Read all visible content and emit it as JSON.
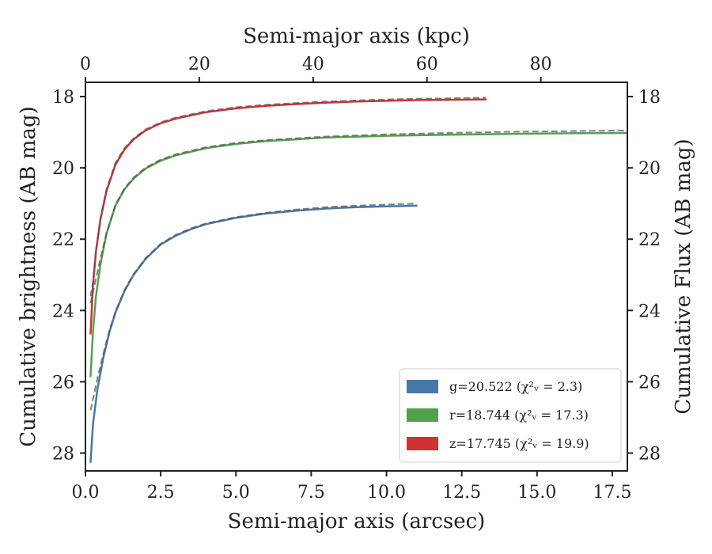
{
  "chart_data": {
    "type": "line",
    "xlabel": "Semi-major axis (arcsec)",
    "x2label": "Semi-major axis (kpc)",
    "ylabel": "Cumulative brightness (AB mag)",
    "y2label": "Cumulative Flux (AB mag)",
    "xlim": [
      0,
      18
    ],
    "x2lim": [
      0,
      95.2
    ],
    "ylim": [
      28.5,
      17.6
    ],
    "y_inverted": true,
    "x_ticks": [
      "0.0",
      "2.5",
      "5.0",
      "7.5",
      "10.0",
      "12.5",
      "15.0",
      "17.5"
    ],
    "x2_ticks": [
      "0",
      "20",
      "40",
      "60",
      "80"
    ],
    "y_ticks": [
      "18",
      "20",
      "22",
      "24",
      "26",
      "28"
    ],
    "y2_ticks": [
      "18",
      "20",
      "22",
      "24",
      "26",
      "28"
    ],
    "grid": false,
    "legend_position": "lower-right",
    "legend": [
      {
        "band": "g",
        "text": "g=20.522 (χ²ᵥ = 2.3)",
        "color": "#4878a8"
      },
      {
        "band": "r",
        "text": "r=18.744 (χ²ᵥ = 17.3)",
        "color": "#55a04f"
      },
      {
        "band": "z",
        "text": "z=17.745 (χ²ᵥ = 19.9)",
        "color": "#d03234"
      }
    ],
    "series": [
      {
        "band": "g",
        "color": "#4878a8",
        "x": [
          0.17,
          0.25,
          0.4,
          0.6,
          0.8,
          1.0,
          1.3,
          1.6,
          2.0,
          2.5,
          3.0,
          3.5,
          4.0,
          5.0,
          6.0,
          7.0,
          8.0,
          9.0,
          10.0,
          11.0
        ],
        "y": [
          28.25,
          27.2,
          26.2,
          25.3,
          24.6,
          24.05,
          23.45,
          23.0,
          22.55,
          22.15,
          21.9,
          21.72,
          21.58,
          21.4,
          21.28,
          21.2,
          21.14,
          21.1,
          21.08,
          21.06
        ],
        "model_y": [
          26.8,
          26.5,
          25.9,
          25.2,
          24.55,
          24.02,
          23.42,
          22.98,
          22.53,
          22.13,
          21.88,
          21.7,
          21.56,
          21.38,
          21.26,
          21.17,
          21.1,
          21.06,
          21.03,
          21.0
        ]
      },
      {
        "band": "r",
        "color": "#55a04f",
        "x": [
          0.17,
          0.25,
          0.35,
          0.5,
          0.7,
          1.0,
          1.3,
          1.6,
          2.0,
          2.5,
          3.0,
          4.0,
          5.0,
          6.0,
          8.0,
          10.0,
          12.0,
          14.0,
          16.0,
          17.95
        ],
        "y": [
          25.85,
          24.6,
          23.6,
          22.7,
          21.85,
          21.05,
          20.6,
          20.3,
          20.02,
          19.8,
          19.65,
          19.45,
          19.33,
          19.25,
          19.15,
          19.1,
          19.07,
          19.05,
          19.03,
          19.02
        ],
        "model_y": [
          23.8,
          23.5,
          23.1,
          22.55,
          21.82,
          21.02,
          20.57,
          20.27,
          19.99,
          19.77,
          19.62,
          19.42,
          19.3,
          19.22,
          19.12,
          19.06,
          19.02,
          18.99,
          18.97,
          18.95
        ]
      },
      {
        "band": "z",
        "color": "#d03234",
        "x": [
          0.17,
          0.25,
          0.35,
          0.5,
          0.7,
          1.0,
          1.3,
          1.6,
          2.0,
          2.5,
          3.0,
          4.0,
          5.0,
          6.0,
          7.0,
          8.0,
          9.0,
          10.0,
          11.0,
          12.0,
          13.3
        ],
        "y": [
          24.65,
          23.3,
          22.35,
          21.45,
          20.65,
          19.9,
          19.48,
          19.2,
          18.95,
          18.75,
          18.62,
          18.44,
          18.33,
          18.26,
          18.21,
          18.17,
          18.14,
          18.12,
          18.1,
          18.09,
          18.08
        ],
        "model_y": [
          23.6,
          23.2,
          22.3,
          21.4,
          20.6,
          19.85,
          19.44,
          19.17,
          18.92,
          18.72,
          18.59,
          18.41,
          18.3,
          18.23,
          18.18,
          18.14,
          18.11,
          18.08,
          18.06,
          18.05,
          18.03
        ]
      }
    ]
  }
}
